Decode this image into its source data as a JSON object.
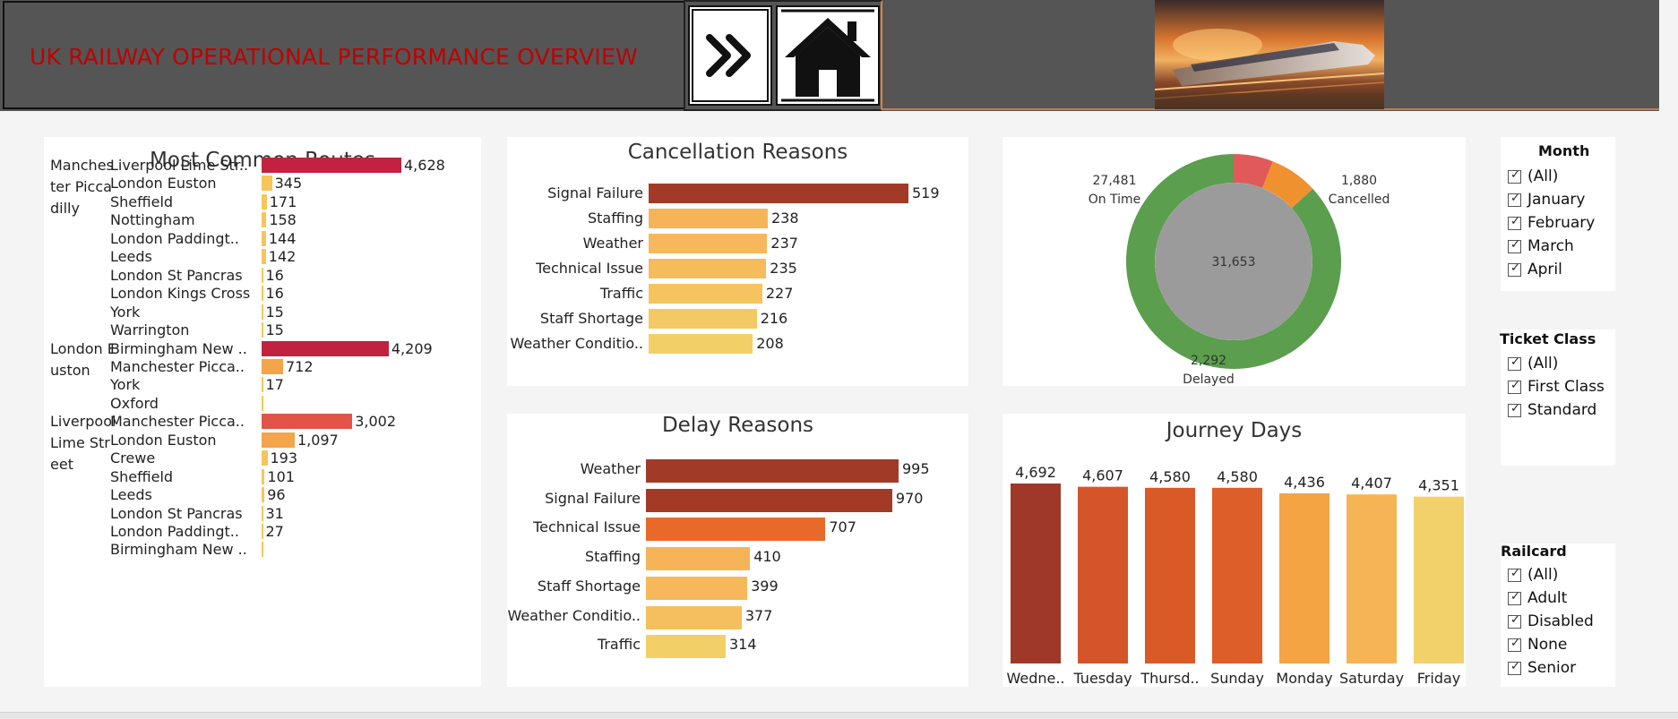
{
  "header": {
    "title": "UK RAILWAY  OPERATIONAL PERFORMANCE OVERVIEW",
    "forward_button_icon": "double-chevron-right-icon",
    "home_button_icon": "home-icon",
    "banner_image": "high-speed-train-sunset-image"
  },
  "routes": {
    "title": "Most Common Routes",
    "groups": [
      {
        "label": "Manchester Piccadilly",
        "rows": [
          {
            "dest": "Liverpool Lime Str..",
            "value": "4,628"
          },
          {
            "dest": "London Euston",
            "value": "345"
          },
          {
            "dest": "Sheffield",
            "value": "171"
          },
          {
            "dest": "Nottingham",
            "value": "158"
          },
          {
            "dest": "London Paddingt..",
            "value": "144"
          },
          {
            "dest": "Leeds",
            "value": "142"
          },
          {
            "dest": "London St Pancras",
            "value": "16"
          },
          {
            "dest": "London Kings Cross",
            "value": "16"
          },
          {
            "dest": "York",
            "value": "15"
          },
          {
            "dest": "Warrington",
            "value": "15"
          }
        ]
      },
      {
        "label": "London Euston",
        "rows": [
          {
            "dest": "Birmingham New ..",
            "value": "4,209"
          },
          {
            "dest": "Manchester Picca..",
            "value": "712"
          },
          {
            "dest": "York",
            "value": "17"
          },
          {
            "dest": "Oxford",
            "value": ""
          }
        ]
      },
      {
        "label": "Liverpool Lime Street",
        "rows": [
          {
            "dest": "Manchester Picca..",
            "value": "3,002"
          },
          {
            "dest": "London Euston",
            "value": "1,097"
          },
          {
            "dest": "Crewe",
            "value": "193"
          },
          {
            "dest": "Sheffield",
            "value": "101"
          },
          {
            "dest": "Leeds",
            "value": "96"
          },
          {
            "dest": "London St Pancras",
            "value": "31"
          },
          {
            "dest": "London Paddingt..",
            "value": "27"
          },
          {
            "dest": "Birmingham New ..",
            "value": ""
          }
        ]
      }
    ]
  },
  "cancellation": {
    "title": "Cancellation Reasons",
    "categories": [
      "Signal Failure",
      "Staffing",
      "Weather",
      "Technical Issue",
      "Traffic",
      "Staff Shortage",
      "Weather Conditio.."
    ],
    "values": [
      519,
      238,
      237,
      235,
      227,
      216,
      208
    ]
  },
  "delay": {
    "title": "Delay Reasons",
    "categories": [
      "Weather",
      "Signal Failure",
      "Technical Issue",
      "Staffing",
      "Staff Shortage",
      "Weather Conditio..",
      "Traffic"
    ],
    "values": [
      995,
      970,
      707,
      410,
      399,
      377,
      314
    ]
  },
  "status": {
    "total": "31,653",
    "segments": [
      {
        "label": "Cancelled",
        "value": 1880,
        "display": "1,880",
        "color": "#e05a5a"
      },
      {
        "label": "Delayed",
        "value": 2292,
        "display": "2,292",
        "color": "#f0912f"
      },
      {
        "label": "On Time",
        "value": 27481,
        "display": "27,481",
        "color": "#5a9e4e"
      }
    ]
  },
  "journey_days": {
    "title": "Journey Days",
    "categories": [
      "Wedne..",
      "Tuesday",
      "Thursd..",
      "Sunday",
      "Monday",
      "Saturday",
      "Friday"
    ],
    "values": [
      4692,
      4607,
      4580,
      4580,
      4436,
      4407,
      4351
    ],
    "labels": [
      "4,692",
      "4,607",
      "4,580",
      "4,580",
      "4,436",
      "4,407",
      "4,351"
    ],
    "colors": [
      "#a0382a",
      "#d4552a",
      "#d95a27",
      "#dd5e28",
      "#f4a443",
      "#f6b455",
      "#f2d16a"
    ]
  },
  "filters": {
    "month": {
      "title": "Month",
      "options": [
        "(All)",
        "January",
        "February",
        "March",
        "April"
      ]
    },
    "ticket_class": {
      "title": "Ticket Class",
      "options": [
        "(All)",
        "First Class",
        "Standard"
      ]
    },
    "railcard": {
      "title": "Railcard",
      "options": [
        "(All)",
        "Adult",
        "Disabled",
        "None",
        "Senior"
      ]
    }
  },
  "chart_data": [
    {
      "type": "bar",
      "title": "Cancellation Reasons",
      "categories": [
        "Signal Failure",
        "Staffing",
        "Weather",
        "Technical Issue",
        "Traffic",
        "Staff Shortage",
        "Weather Conditio.."
      ],
      "values": [
        519,
        238,
        237,
        235,
        227,
        216,
        208
      ]
    },
    {
      "type": "bar",
      "title": "Delay Reasons",
      "categories": [
        "Weather",
        "Signal Failure",
        "Technical Issue",
        "Staffing",
        "Staff Shortage",
        "Weather Conditio..",
        "Traffic"
      ],
      "values": [
        995,
        970,
        707,
        410,
        399,
        377,
        314
      ]
    },
    {
      "type": "pie",
      "categories": [
        "Cancelled",
        "Delayed",
        "On Time"
      ],
      "values": [
        1880,
        2292,
        27481
      ]
    },
    {
      "type": "bar",
      "title": "Journey Days",
      "categories": [
        "Wedne..",
        "Tuesday",
        "Thursd..",
        "Sunday",
        "Monday",
        "Saturday",
        "Friday"
      ],
      "values": [
        4692,
        4607,
        4580,
        4580,
        4436,
        4407,
        4351
      ]
    },
    {
      "type": "bar",
      "title": "Most Common Routes",
      "series": [
        {
          "name": "Manchester Piccadilly",
          "categories": [
            "Liverpool Lime Str..",
            "London Euston",
            "Sheffield",
            "Nottingham",
            "London Paddingt..",
            "Leeds",
            "London St Pancras",
            "London Kings Cross",
            "York",
            "Warrington"
          ],
          "values": [
            4628,
            345,
            171,
            158,
            144,
            142,
            16,
            16,
            15,
            15
          ]
        },
        {
          "name": "London Euston",
          "categories": [
            "Birmingham New ..",
            "Manchester Picca..",
            "York",
            "Oxford"
          ],
          "values": [
            4209,
            712,
            17,
            null
          ]
        },
        {
          "name": "Liverpool Lime Street",
          "categories": [
            "Manchester Picca..",
            "London Euston",
            "Crewe",
            "Sheffield",
            "Leeds",
            "London St Pancras",
            "London Paddingt..",
            "Birmingham New .."
          ],
          "values": [
            3002,
            1097,
            193,
            101,
            96,
            31,
            27,
            null
          ]
        }
      ]
    }
  ]
}
